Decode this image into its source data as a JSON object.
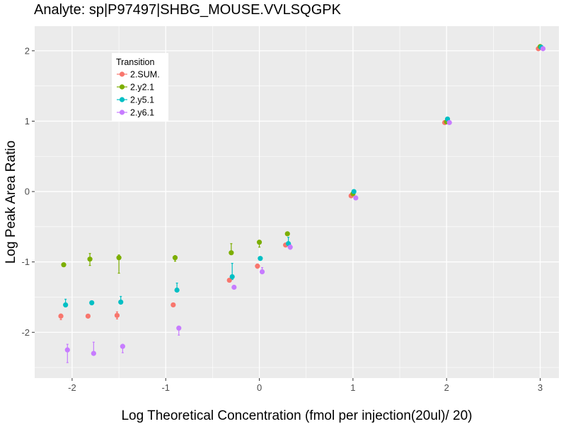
{
  "chart_data": {
    "type": "scatter",
    "title": "Analyte: sp|P97497|SHBG_MOUSE.VVLSQGPK",
    "xlabel": "Log Theoretical Concentration (fmol per injection(20ul)/ 20)",
    "ylabel": "Log Peak Area Ratio",
    "xlim": [
      -2.4,
      3.2
    ],
    "ylim": [
      -2.65,
      2.35
    ],
    "xticks": [
      -2,
      -1,
      0,
      1,
      2,
      3
    ],
    "xtick_labels": [
      "-2",
      "-1",
      "0",
      "1",
      "2",
      "3"
    ],
    "yticks": [
      -2,
      -1,
      0,
      1,
      2
    ],
    "ytick_labels": [
      "-2",
      "-1",
      "0",
      "1",
      "2"
    ],
    "x_minor": [
      -1.5,
      -0.5,
      0.5,
      1.5,
      2.5
    ],
    "y_minor": [
      -2.5,
      -1.5,
      -0.5,
      0.5,
      1.5
    ],
    "background": "#ebebeb",
    "grid_color": "#ffffff",
    "legend": {
      "title": "Transition",
      "position": "top-left"
    },
    "series": [
      {
        "name": "2.SUM.",
        "color": "#f8766d",
        "points": [
          {
            "x": -2.12,
            "y": -1.77,
            "lo": -1.82,
            "hi": -1.74
          },
          {
            "x": -1.83,
            "y": -1.77,
            "lo": -1.78,
            "hi": -1.76
          },
          {
            "x": -1.52,
            "y": -1.76,
            "lo": -1.81,
            "hi": -1.71
          },
          {
            "x": -0.92,
            "y": -1.61,
            "lo": -1.63,
            "hi": -1.6
          },
          {
            "x": -0.32,
            "y": -1.26,
            "lo": -1.27,
            "hi": -1.24
          },
          {
            "x": -0.02,
            "y": -1.06,
            "lo": -1.09,
            "hi": -1.03
          },
          {
            "x": 0.28,
            "y": -0.76,
            "lo": -0.78,
            "hi": -0.74
          },
          {
            "x": 0.98,
            "y": -0.06,
            "lo": -0.07,
            "hi": -0.05
          },
          {
            "x": 1.98,
            "y": 0.98,
            "lo": 0.97,
            "hi": 0.99
          },
          {
            "x": 2.98,
            "y": 2.03,
            "lo": 2.02,
            "hi": 2.04
          }
        ]
      },
      {
        "name": "2.y2.1",
        "color": "#7cae00",
        "points": [
          {
            "x": -2.09,
            "y": -1.04,
            "lo": -1.05,
            "hi": -1.03
          },
          {
            "x": -1.81,
            "y": -0.96,
            "lo": -1.05,
            "hi": -0.88
          },
          {
            "x": -1.5,
            "y": -0.94,
            "lo": -1.16,
            "hi": -0.9
          },
          {
            "x": -0.9,
            "y": -0.94,
            "lo": -0.99,
            "hi": -0.91
          },
          {
            "x": -0.3,
            "y": -0.87,
            "lo": -0.89,
            "hi": -0.74
          },
          {
            "x": 0.0,
            "y": -0.72,
            "lo": -0.79,
            "hi": -0.7
          },
          {
            "x": 0.3,
            "y": -0.6,
            "lo": -0.62,
            "hi": -0.58
          },
          {
            "x": 1.0,
            "y": -0.03,
            "lo": -0.05,
            "hi": -0.02
          },
          {
            "x": 2.0,
            "y": 0.99,
            "lo": 0.98,
            "hi": 1.0
          },
          {
            "x": 3.0,
            "y": 2.06,
            "lo": 2.05,
            "hi": 2.07
          }
        ]
      },
      {
        "name": "2.y5.1",
        "color": "#00bfc4",
        "points": [
          {
            "x": -2.07,
            "y": -1.61,
            "lo": -1.64,
            "hi": -1.53
          },
          {
            "x": -1.79,
            "y": -1.58,
            "lo": -1.61,
            "hi": -1.56
          },
          {
            "x": -1.48,
            "y": -1.57,
            "lo": -1.6,
            "hi": -1.49
          },
          {
            "x": -0.88,
            "y": -1.4,
            "lo": -1.42,
            "hi": -1.3
          },
          {
            "x": -0.29,
            "y": -1.21,
            "lo": -1.25,
            "hi": -1.02
          },
          {
            "x": 0.01,
            "y": -0.95,
            "lo": -0.97,
            "hi": -0.93
          },
          {
            "x": 0.31,
            "y": -0.74,
            "lo": -0.77,
            "hi": -0.65
          },
          {
            "x": 1.01,
            "y": 0.0,
            "lo": -0.02,
            "hi": 0.02
          },
          {
            "x": 2.01,
            "y": 1.03,
            "lo": 1.02,
            "hi": 1.04
          },
          {
            "x": 3.01,
            "y": 2.05,
            "lo": 2.04,
            "hi": 2.06
          }
        ]
      },
      {
        "name": "2.y6.1",
        "color": "#c77cff",
        "points": [
          {
            "x": -2.05,
            "y": -2.25,
            "lo": -2.43,
            "hi": -2.17
          },
          {
            "x": -1.77,
            "y": -2.3,
            "lo": -2.32,
            "hi": -2.14
          },
          {
            "x": -1.46,
            "y": -2.2,
            "lo": -2.29,
            "hi": -2.17
          },
          {
            "x": -0.86,
            "y": -1.94,
            "lo": -2.04,
            "hi": -1.92
          },
          {
            "x": -0.27,
            "y": -1.36,
            "lo": -1.38,
            "hi": -1.34
          },
          {
            "x": 0.03,
            "y": -1.14,
            "lo": -1.16,
            "hi": -1.08
          },
          {
            "x": 0.33,
            "y": -0.79,
            "lo": -0.82,
            "hi": -0.75
          },
          {
            "x": 1.03,
            "y": -0.09,
            "lo": -0.11,
            "hi": -0.07
          },
          {
            "x": 2.03,
            "y": 0.98,
            "lo": 0.97,
            "hi": 0.99
          },
          {
            "x": 3.03,
            "y": 2.03,
            "lo": 2.02,
            "hi": 2.04
          }
        ]
      }
    ]
  }
}
